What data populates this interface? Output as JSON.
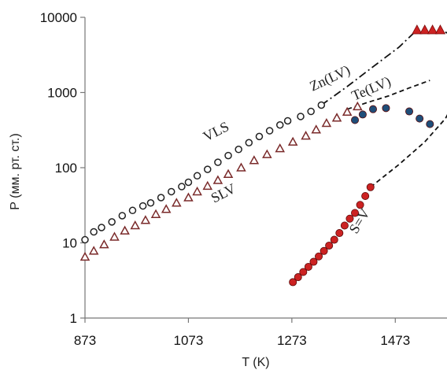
{
  "chart_data": {
    "type": "scatter",
    "title": "",
    "xlabel": "T (K)",
    "ylabel": "P (мм. рт. ст.)",
    "x_scale": "linear",
    "y_scale": "log",
    "xlim": [
      873,
      1573
    ],
    "ylim": [
      1,
      10000
    ],
    "x_ticks": [
      "873",
      "1073",
      "1273",
      "1473"
    ],
    "y_ticks": [
      "1",
      "10",
      "100",
      "1000",
      "10000"
    ],
    "grid": false,
    "legend": "none",
    "annotations": [
      "VLS",
      "SLV",
      "Zn(LV)",
      "Te(LV)",
      "S=V"
    ],
    "series": [
      {
        "name": "VLS",
        "marker": "circle-open",
        "color": "#222222",
        "x": [
          873,
          890,
          905,
          925,
          945,
          965,
          985,
          1000,
          1020,
          1040,
          1060,
          1073,
          1090,
          1110,
          1130,
          1150,
          1170,
          1190,
          1210,
          1230,
          1250,
          1265,
          1290,
          1310,
          1330
        ],
        "y": [
          11,
          14,
          16,
          19,
          23,
          27,
          31,
          34,
          40,
          48,
          56,
          64,
          78,
          95,
          118,
          145,
          175,
          215,
          260,
          310,
          370,
          420,
          480,
          560,
          680
        ]
      },
      {
        "name": "SLV",
        "marker": "triangle-open",
        "color": "#7a2a2a",
        "x": [
          873,
          890,
          910,
          930,
          950,
          970,
          990,
          1010,
          1030,
          1050,
          1073,
          1090,
          1110,
          1130,
          1150,
          1175,
          1200,
          1225,
          1250,
          1275,
          1300,
          1320,
          1340,
          1360,
          1380,
          1400
        ],
        "y": [
          6.5,
          7.8,
          9.5,
          12,
          14.5,
          17,
          20,
          24,
          28,
          34,
          40,
          48,
          57,
          68,
          82,
          100,
          125,
          150,
          180,
          220,
          265,
          320,
          390,
          460,
          550,
          650
        ]
      },
      {
        "name": "S=V",
        "marker": "circle-filled",
        "color": "#cc2222",
        "x": [
          1275,
          1285,
          1295,
          1305,
          1315,
          1325,
          1335,
          1345,
          1355,
          1365,
          1375,
          1385,
          1395,
          1405,
          1415,
          1425
        ],
        "y": [
          3,
          3.5,
          4.1,
          4.8,
          5.6,
          6.6,
          7.8,
          9.2,
          11,
          13.5,
          17,
          21,
          25,
          32,
          42,
          55
        ]
      },
      {
        "name": "",
        "marker": "circle-filled",
        "color": "#1f4e79",
        "x": [
          1395,
          1410,
          1430,
          1455,
          1500,
          1520,
          1540
        ],
        "y": [
          430,
          510,
          600,
          620,
          560,
          450,
          380
        ]
      },
      {
        "name": "",
        "marker": "triangle-filled",
        "color": "#cc2222",
        "x": [
          1515,
          1530,
          1545,
          1560
        ],
        "y": [
          6800,
          6800,
          6800,
          6800
        ]
      }
    ],
    "curves": [
      {
        "name": "Zn(LV)",
        "style": "dash-dot",
        "x": [
          1330,
          1380,
          1430,
          1480,
          1515
        ],
        "y": [
          680,
          1200,
          2200,
          4000,
          6800
        ]
      },
      {
        "name": "Te(LV)",
        "style": "dashed",
        "x": [
          1380,
          1420,
          1460,
          1500,
          1540
        ],
        "y": [
          600,
          740,
          900,
          1150,
          1450
        ]
      },
      {
        "name": "S=V",
        "style": "dashed",
        "x": [
          1425,
          1480,
          1530,
          1570,
          1585,
          1585,
          1578,
          1560
        ],
        "y": [
          55,
          110,
          220,
          450,
          700,
          4000,
          6000,
          6800
        ]
      }
    ]
  }
}
